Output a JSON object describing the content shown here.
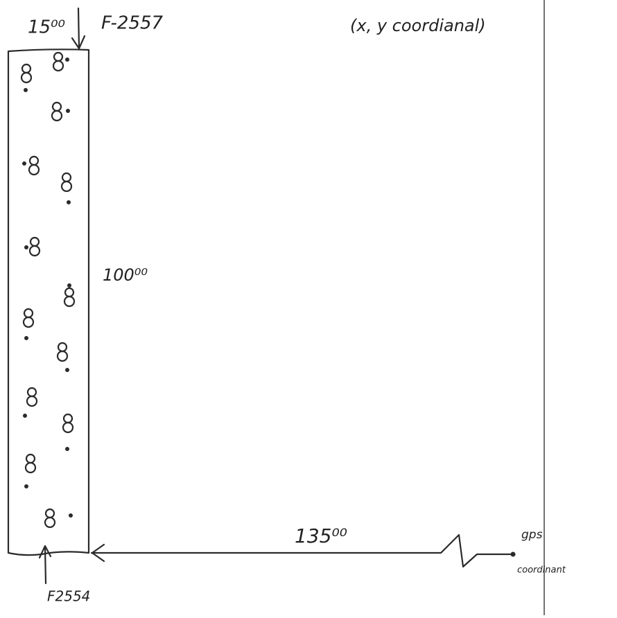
{
  "labels": {
    "top_width": "15⁰⁰",
    "top_marker": "F-2557",
    "coordinates_note": "(x, y coordianal)",
    "side_length": "100⁰⁰",
    "bottom_length": "135⁰⁰",
    "gps_label": "gps",
    "gps_label_2": "coordinant",
    "bottom_marker": "F2554"
  }
}
